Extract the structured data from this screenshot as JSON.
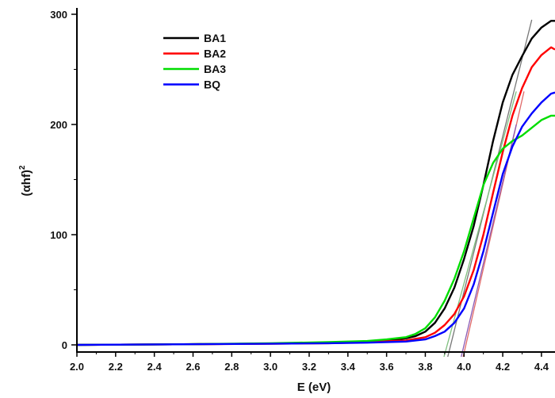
{
  "chart_data": {
    "type": "line",
    "xlabel": "E (eV)",
    "ylabel": "(αhf)",
    "ylabel_superscript": "2",
    "xlim": [
      2.0,
      4.47
    ],
    "ylim": [
      0,
      300
    ],
    "x_ticks": [
      "2.0",
      "2.2",
      "2.4",
      "2.6",
      "2.8",
      "3.0",
      "3.2",
      "3.4",
      "3.6",
      "3.8",
      "4.0",
      "4.2",
      "4.4"
    ],
    "y_ticks": [
      "0",
      "100",
      "200",
      "300"
    ],
    "grid": false,
    "legend_position": "top-left",
    "series": [
      {
        "name": "BA1",
        "color": "#000000",
        "points": [
          [
            2.0,
            0
          ],
          [
            2.5,
            0.5
          ],
          [
            3.0,
            1.2
          ],
          [
            3.3,
            2
          ],
          [
            3.5,
            3
          ],
          [
            3.6,
            4
          ],
          [
            3.7,
            6
          ],
          [
            3.75,
            8
          ],
          [
            3.8,
            12
          ],
          [
            3.85,
            20
          ],
          [
            3.9,
            33
          ],
          [
            3.95,
            52
          ],
          [
            4.0,
            78
          ],
          [
            4.05,
            108
          ],
          [
            4.1,
            145
          ],
          [
            4.15,
            185
          ],
          [
            4.2,
            220
          ],
          [
            4.25,
            245
          ],
          [
            4.3,
            262
          ],
          [
            4.35,
            278
          ],
          [
            4.4,
            288
          ],
          [
            4.45,
            294
          ],
          [
            4.47,
            294
          ]
        ]
      },
      {
        "name": "BA2",
        "color": "#ff0000",
        "points": [
          [
            2.0,
            0
          ],
          [
            2.5,
            0.5
          ],
          [
            3.0,
            1
          ],
          [
            3.3,
            1.5
          ],
          [
            3.5,
            2.5
          ],
          [
            3.7,
            4
          ],
          [
            3.8,
            7
          ],
          [
            3.85,
            11
          ],
          [
            3.9,
            18
          ],
          [
            3.95,
            28
          ],
          [
            4.0,
            44
          ],
          [
            4.05,
            68
          ],
          [
            4.1,
            100
          ],
          [
            4.15,
            138
          ],
          [
            4.2,
            175
          ],
          [
            4.25,
            208
          ],
          [
            4.3,
            233
          ],
          [
            4.35,
            252
          ],
          [
            4.4,
            263
          ],
          [
            4.45,
            270
          ],
          [
            4.47,
            268
          ]
        ]
      },
      {
        "name": "BA3",
        "color": "#00dd00",
        "points": [
          [
            2.0,
            0
          ],
          [
            2.5,
            0.5
          ],
          [
            3.0,
            1.5
          ],
          [
            3.3,
            2.5
          ],
          [
            3.5,
            3.5
          ],
          [
            3.6,
            5
          ],
          [
            3.7,
            7
          ],
          [
            3.75,
            10
          ],
          [
            3.8,
            15
          ],
          [
            3.85,
            25
          ],
          [
            3.9,
            40
          ],
          [
            3.95,
            60
          ],
          [
            4.0,
            85
          ],
          [
            4.05,
            115
          ],
          [
            4.1,
            145
          ],
          [
            4.15,
            165
          ],
          [
            4.2,
            178
          ],
          [
            4.25,
            185
          ],
          [
            4.3,
            190
          ],
          [
            4.35,
            197
          ],
          [
            4.4,
            204
          ],
          [
            4.45,
            208
          ],
          [
            4.47,
            208
          ]
        ]
      },
      {
        "name": "BQ",
        "color": "#0000ff",
        "points": [
          [
            2.0,
            0
          ],
          [
            2.5,
            0.5
          ],
          [
            3.0,
            1
          ],
          [
            3.3,
            1.5
          ],
          [
            3.5,
            2
          ],
          [
            3.7,
            3
          ],
          [
            3.8,
            5
          ],
          [
            3.85,
            8
          ],
          [
            3.9,
            12
          ],
          [
            3.95,
            20
          ],
          [
            4.0,
            33
          ],
          [
            4.05,
            55
          ],
          [
            4.1,
            85
          ],
          [
            4.15,
            120
          ],
          [
            4.2,
            155
          ],
          [
            4.25,
            180
          ],
          [
            4.3,
            198
          ],
          [
            4.35,
            210
          ],
          [
            4.4,
            220
          ],
          [
            4.45,
            228
          ],
          [
            4.47,
            229
          ]
        ]
      }
    ],
    "tangent_lines": [
      {
        "color": "#777777",
        "points": [
          [
            3.91,
            -15
          ],
          [
            4.35,
            295
          ]
        ]
      },
      {
        "color": "#7fc07f",
        "points": [
          [
            3.89,
            -15
          ],
          [
            4.27,
            230
          ]
        ]
      },
      {
        "color": "#e06a6a",
        "points": [
          [
            3.99,
            -15
          ],
          [
            4.31,
            230
          ]
        ]
      },
      {
        "color": "#8a5ab5",
        "points": [
          [
            3.98,
            -15
          ],
          [
            4.27,
            200
          ]
        ]
      }
    ]
  }
}
